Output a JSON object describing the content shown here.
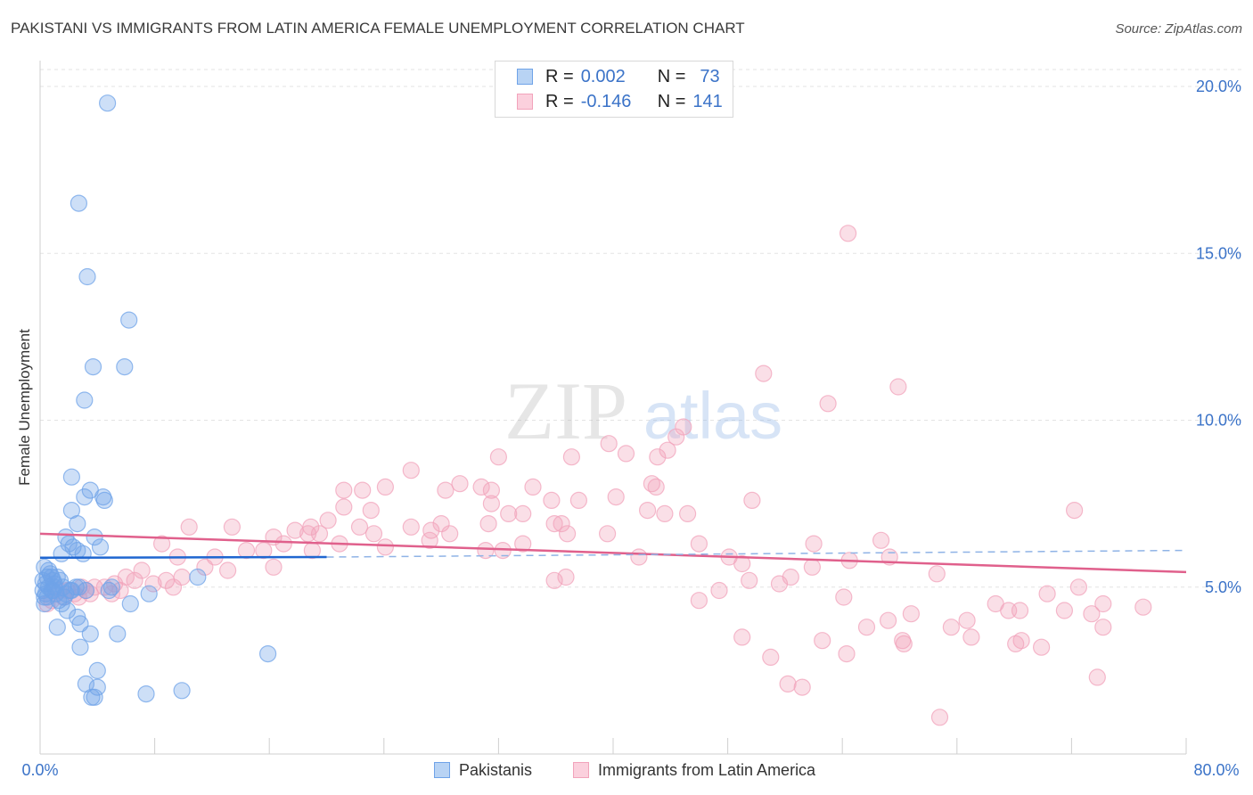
{
  "title": "PAKISTANI VS IMMIGRANTS FROM LATIN AMERICA FEMALE UNEMPLOYMENT CORRELATION CHART",
  "source": "Source: ZipAtlas.com",
  "watermark": {
    "zip": "ZIP",
    "atlas": "atlas"
  },
  "legend": {
    "series1": {
      "r_label": "R =",
      "r_value": "0.002",
      "n_label": "N =",
      "n_value": "73"
    },
    "series2": {
      "r_label": "R =",
      "r_value": "-0.146",
      "n_label": "N =",
      "n_value": "141"
    }
  },
  "bottom_legend": {
    "series1": "Pakistanis",
    "series2": "Immigrants from Latin America"
  },
  "colors": {
    "blue": "#6fa3e8",
    "blue_line": "#1f66d0",
    "pink": "#f2a3bb",
    "pink_line": "#e0608c",
    "tick": "#3b73c8"
  },
  "chart_data": {
    "type": "scatter",
    "title": "PAKISTANI VS IMMIGRANTS FROM LATIN AMERICA FEMALE UNEMPLOYMENT CORRELATION CHART",
    "xlabel": "",
    "ylabel": "Female Unemployment",
    "xlim": [
      0,
      80
    ],
    "ylim": [
      0,
      20.5
    ],
    "x_tick_labels": [
      "0.0%",
      "80.0%"
    ],
    "y_ticks": [
      5,
      10,
      15,
      20
    ],
    "y_tick_labels": [
      "5.0%",
      "10.0%",
      "15.0%",
      "20.0%"
    ],
    "series": [
      {
        "name": "Pakistanis",
        "r": 0.002,
        "n": 73,
        "trend": {
          "x": [
            0,
            20
          ],
          "y": [
            5.88,
            5.9
          ],
          "dashed_to": [
            80,
            6.1
          ]
        },
        "points": [
          [
            4.7,
            19.5
          ],
          [
            2.7,
            16.5
          ],
          [
            3.3,
            14.3
          ],
          [
            6.2,
            13.0
          ],
          [
            3.7,
            11.6
          ],
          [
            5.9,
            11.6
          ],
          [
            3.1,
            10.6
          ],
          [
            2.2,
            8.3
          ],
          [
            3.5,
            7.9
          ],
          [
            4.4,
            7.7
          ],
          [
            4.5,
            7.6
          ],
          [
            3.1,
            7.7
          ],
          [
            2.2,
            7.3
          ],
          [
            2.6,
            6.9
          ],
          [
            1.8,
            6.5
          ],
          [
            2.0,
            6.3
          ],
          [
            3.8,
            6.5
          ],
          [
            4.2,
            6.2
          ],
          [
            3.0,
            6.0
          ],
          [
            2.3,
            6.2
          ],
          [
            1.5,
            6.0
          ],
          [
            2.6,
            6.1
          ],
          [
            0.3,
            5.6
          ],
          [
            0.5,
            5.3
          ],
          [
            0.7,
            5.4
          ],
          [
            0.9,
            5.2
          ],
          [
            1.2,
            5.3
          ],
          [
            0.4,
            5.1
          ],
          [
            0.6,
            5.0
          ],
          [
            1.0,
            5.1
          ],
          [
            1.4,
            5.2
          ],
          [
            0.2,
            4.9
          ],
          [
            0.4,
            4.8
          ],
          [
            0.8,
            4.9
          ],
          [
            1.1,
            4.8
          ],
          [
            1.6,
            5.0
          ],
          [
            2.1,
            4.9
          ],
          [
            2.5,
            5.0
          ],
          [
            0.5,
            4.7
          ],
          [
            1.3,
            4.6
          ],
          [
            0.3,
            4.5
          ],
          [
            1.5,
            4.5
          ],
          [
            2.7,
            5.0
          ],
          [
            3.2,
            4.9
          ],
          [
            4.8,
            4.9
          ],
          [
            5.0,
            5.0
          ],
          [
            1.9,
            4.3
          ],
          [
            2.6,
            4.1
          ],
          [
            1.2,
            3.8
          ],
          [
            2.8,
            3.9
          ],
          [
            3.5,
            3.6
          ],
          [
            5.4,
            3.6
          ],
          [
            6.3,
            4.5
          ],
          [
            11.0,
            5.3
          ],
          [
            2.8,
            3.2
          ],
          [
            4.0,
            2.5
          ],
          [
            3.2,
            2.1
          ],
          [
            4.0,
            2.0
          ],
          [
            3.6,
            1.7
          ],
          [
            3.8,
            1.7
          ],
          [
            7.4,
            1.8
          ],
          [
            9.9,
            1.9
          ],
          [
            15.9,
            3.0
          ],
          [
            7.6,
            4.8
          ],
          [
            0.9,
            4.9
          ],
          [
            1.7,
            4.7
          ],
          [
            0.6,
            5.5
          ],
          [
            1.0,
            5.0
          ],
          [
            0.3,
            4.7
          ],
          [
            2.2,
            4.9
          ],
          [
            1.8,
            4.8
          ],
          [
            0.8,
            5.3
          ],
          [
            0.2,
            5.2
          ]
        ]
      },
      {
        "name": "Immigrants from Latin America",
        "r": -0.146,
        "n": 141,
        "trend": {
          "x": [
            0,
            80
          ],
          "y": [
            6.6,
            5.45
          ]
        },
        "points": [
          [
            56.4,
            15.6
          ],
          [
            50.5,
            11.4
          ],
          [
            59.9,
            11.0
          ],
          [
            55.0,
            10.5
          ],
          [
            44.9,
            9.8
          ],
          [
            39.7,
            9.3
          ],
          [
            44.4,
            9.5
          ],
          [
            43.8,
            9.1
          ],
          [
            32.0,
            8.9
          ],
          [
            37.1,
            8.9
          ],
          [
            43.1,
            8.9
          ],
          [
            40.9,
            9.0
          ],
          [
            42.7,
            8.1
          ],
          [
            25.9,
            8.5
          ],
          [
            29.3,
            8.1
          ],
          [
            30.8,
            8.0
          ],
          [
            31.5,
            7.9
          ],
          [
            28.3,
            7.9
          ],
          [
            34.4,
            8.0
          ],
          [
            24.1,
            8.0
          ],
          [
            21.2,
            7.9
          ],
          [
            22.5,
            7.9
          ],
          [
            43.0,
            8.0
          ],
          [
            40.2,
            7.7
          ],
          [
            35.7,
            7.6
          ],
          [
            31.5,
            7.5
          ],
          [
            32.7,
            7.2
          ],
          [
            37.6,
            7.6
          ],
          [
            49.7,
            7.6
          ],
          [
            72.2,
            7.3
          ],
          [
            42.4,
            7.3
          ],
          [
            43.6,
            7.2
          ],
          [
            45.2,
            7.2
          ],
          [
            33.7,
            7.2
          ],
          [
            35.9,
            6.9
          ],
          [
            36.4,
            6.9
          ],
          [
            36.8,
            6.6
          ],
          [
            21.2,
            7.4
          ],
          [
            23.1,
            7.3
          ],
          [
            25.9,
            6.8
          ],
          [
            27.3,
            6.7
          ],
          [
            28.0,
            6.9
          ],
          [
            31.3,
            6.9
          ],
          [
            22.3,
            6.8
          ],
          [
            23.3,
            6.6
          ],
          [
            20.1,
            7.0
          ],
          [
            18.9,
            6.8
          ],
          [
            17.8,
            6.7
          ],
          [
            19.5,
            6.6
          ],
          [
            16.3,
            6.5
          ],
          [
            17.0,
            6.3
          ],
          [
            13.4,
            6.8
          ],
          [
            10.4,
            6.8
          ],
          [
            18.7,
            6.6
          ],
          [
            19.0,
            6.1
          ],
          [
            20.9,
            6.3
          ],
          [
            24.1,
            6.2
          ],
          [
            27.2,
            6.4
          ],
          [
            28.6,
            6.6
          ],
          [
            33.7,
            6.3
          ],
          [
            31.1,
            6.1
          ],
          [
            32.3,
            6.1
          ],
          [
            39.6,
            6.6
          ],
          [
            46.0,
            6.3
          ],
          [
            54.0,
            6.3
          ],
          [
            58.7,
            6.4
          ],
          [
            59.3,
            5.9
          ],
          [
            62.6,
            5.4
          ],
          [
            41.8,
            5.9
          ],
          [
            48.1,
            5.9
          ],
          [
            49.0,
            5.7
          ],
          [
            56.5,
            5.8
          ],
          [
            53.9,
            5.6
          ],
          [
            8.5,
            6.3
          ],
          [
            9.6,
            5.9
          ],
          [
            12.2,
            5.9
          ],
          [
            14.4,
            6.1
          ],
          [
            15.6,
            6.1
          ],
          [
            16.3,
            5.6
          ],
          [
            11.5,
            5.6
          ],
          [
            13.1,
            5.5
          ],
          [
            9.9,
            5.3
          ],
          [
            7.1,
            5.5
          ],
          [
            6.0,
            5.3
          ],
          [
            7.9,
            5.1
          ],
          [
            8.8,
            5.2
          ],
          [
            6.6,
            5.2
          ],
          [
            5.2,
            5.1
          ],
          [
            3.8,
            5.0
          ],
          [
            4.5,
            5.0
          ],
          [
            2.9,
            5.0
          ],
          [
            3.2,
            4.9
          ],
          [
            2.4,
            4.8
          ],
          [
            1.6,
            4.7
          ],
          [
            0.8,
            4.6
          ],
          [
            1.3,
            4.9
          ],
          [
            5.6,
            4.9
          ],
          [
            9.3,
            5.0
          ],
          [
            5.0,
            4.8
          ],
          [
            3.5,
            4.8
          ],
          [
            2.7,
            4.7
          ],
          [
            1.9,
            4.9
          ],
          [
            0.5,
            4.5
          ],
          [
            36.7,
            5.3
          ],
          [
            35.9,
            5.2
          ],
          [
            49.5,
            5.2
          ],
          [
            51.6,
            5.1
          ],
          [
            52.4,
            5.3
          ],
          [
            47.4,
            4.9
          ],
          [
            46.0,
            4.6
          ],
          [
            56.1,
            4.7
          ],
          [
            70.3,
            4.8
          ],
          [
            72.5,
            5.0
          ],
          [
            59.2,
            4.0
          ],
          [
            60.8,
            4.2
          ],
          [
            64.7,
            4.0
          ],
          [
            66.7,
            4.5
          ],
          [
            68.4,
            4.3
          ],
          [
            74.2,
            4.5
          ],
          [
            67.6,
            4.3
          ],
          [
            71.5,
            4.3
          ],
          [
            77.0,
            4.4
          ],
          [
            73.4,
            4.2
          ],
          [
            57.7,
            3.8
          ],
          [
            63.6,
            3.8
          ],
          [
            74.2,
            3.8
          ],
          [
            65.0,
            3.5
          ],
          [
            68.1,
            3.3
          ],
          [
            68.5,
            3.4
          ],
          [
            69.9,
            3.2
          ],
          [
            49.0,
            3.5
          ],
          [
            54.6,
            3.4
          ],
          [
            56.3,
            3.0
          ],
          [
            60.3,
            3.3
          ],
          [
            60.2,
            3.4
          ],
          [
            51.0,
            2.9
          ],
          [
            52.2,
            2.1
          ],
          [
            53.2,
            2.0
          ],
          [
            73.8,
            2.3
          ],
          [
            62.8,
            1.1
          ]
        ]
      }
    ]
  }
}
